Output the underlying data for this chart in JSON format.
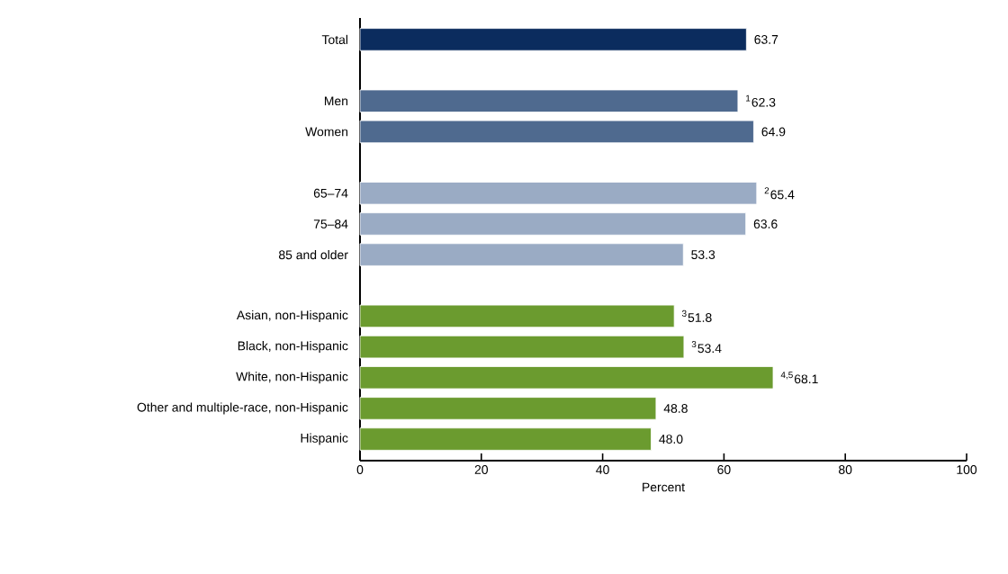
{
  "chart_data": {
    "type": "bar",
    "orientation": "horizontal",
    "xlabel": "Percent",
    "categories": [
      "Total",
      null,
      "Men",
      "Women",
      null,
      "65–74",
      "75–84",
      "85 and older",
      null,
      "Asian, non-Hispanic",
      "Black, non-Hispanic",
      "White, non-Hispanic",
      "Other and multiple-race, non-Hispanic",
      "Hispanic"
    ],
    "values": [
      63.7,
      null,
      62.3,
      64.9,
      null,
      65.4,
      63.6,
      53.3,
      null,
      51.8,
      53.4,
      68.1,
      48.8,
      48.0
    ],
    "value_labels": [
      "63.7",
      null,
      "$^{1}$62.3",
      "64.9",
      null,
      "$^{2}$65.4",
      "63.6",
      "53.3",
      null,
      "$^{3}$51.8",
      "$^{3}$53.4",
      "$^{4,5}$68.1",
      "48.8",
      "48.0"
    ],
    "colors": [
      "#0b2c5e",
      null,
      "#4f6a8f",
      "#4f6a8f",
      null,
      "#9aabc4",
      "#9aabc4",
      "#9aabc4",
      null,
      "#6b9b2f",
      "#6b9b2f",
      "#6b9b2f",
      "#6b9b2f",
      "#6b9b2f"
    ],
    "xlim": [
      0,
      100
    ],
    "xticks": [
      0,
      20,
      40,
      60,
      80,
      100
    ],
    "grid": false
  }
}
